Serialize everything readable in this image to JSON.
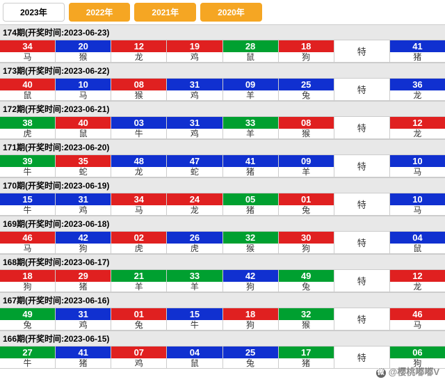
{
  "tabs": [
    {
      "label": "2023年",
      "active": true
    },
    {
      "label": "2022年",
      "active": false
    },
    {
      "label": "2021年",
      "active": false
    },
    {
      "label": "2020年",
      "active": false
    }
  ],
  "special_label": "特",
  "colors": {
    "red": "#e02020",
    "blue": "#1030d0",
    "green": "#00a030"
  },
  "periods": [
    {
      "header": "174期(开奖时间:2023-06-23)",
      "balls": [
        {
          "n": "34",
          "c": "red",
          "z": "马"
        },
        {
          "n": "20",
          "c": "blue",
          "z": "猴"
        },
        {
          "n": "12",
          "c": "red",
          "z": "龙"
        },
        {
          "n": "19",
          "c": "red",
          "z": "鸡"
        },
        {
          "n": "28",
          "c": "green",
          "z": "鼠"
        },
        {
          "n": "18",
          "c": "red",
          "z": "狗"
        }
      ],
      "special": {
        "n": "41",
        "c": "blue",
        "z": "猪"
      }
    },
    {
      "header": "173期(开奖时间:2023-06-22)",
      "balls": [
        {
          "n": "40",
          "c": "red",
          "z": "鼠"
        },
        {
          "n": "10",
          "c": "blue",
          "z": "马"
        },
        {
          "n": "08",
          "c": "red",
          "z": "猴"
        },
        {
          "n": "31",
          "c": "blue",
          "z": "鸡"
        },
        {
          "n": "09",
          "c": "blue",
          "z": "羊"
        },
        {
          "n": "25",
          "c": "blue",
          "z": "兔"
        }
      ],
      "special": {
        "n": "36",
        "c": "blue",
        "z": "龙"
      }
    },
    {
      "header": "172期(开奖时间:2023-06-21)",
      "balls": [
        {
          "n": "38",
          "c": "green",
          "z": "虎"
        },
        {
          "n": "40",
          "c": "red",
          "z": "鼠"
        },
        {
          "n": "03",
          "c": "blue",
          "z": "牛"
        },
        {
          "n": "31",
          "c": "blue",
          "z": "鸡"
        },
        {
          "n": "33",
          "c": "green",
          "z": "羊"
        },
        {
          "n": "08",
          "c": "red",
          "z": "猴"
        }
      ],
      "special": {
        "n": "12",
        "c": "red",
        "z": "龙"
      }
    },
    {
      "header": "171期(开奖时间:2023-06-20)",
      "balls": [
        {
          "n": "39",
          "c": "green",
          "z": "牛"
        },
        {
          "n": "35",
          "c": "red",
          "z": "蛇"
        },
        {
          "n": "48",
          "c": "blue",
          "z": "龙"
        },
        {
          "n": "47",
          "c": "blue",
          "z": "蛇"
        },
        {
          "n": "41",
          "c": "blue",
          "z": "猪"
        },
        {
          "n": "09",
          "c": "blue",
          "z": "羊"
        }
      ],
      "special": {
        "n": "10",
        "c": "blue",
        "z": "马"
      }
    },
    {
      "header": "170期(开奖时间:2023-06-19)",
      "balls": [
        {
          "n": "15",
          "c": "blue",
          "z": "牛"
        },
        {
          "n": "31",
          "c": "blue",
          "z": "鸡"
        },
        {
          "n": "34",
          "c": "red",
          "z": "马"
        },
        {
          "n": "24",
          "c": "red",
          "z": "龙"
        },
        {
          "n": "05",
          "c": "green",
          "z": "猪"
        },
        {
          "n": "01",
          "c": "red",
          "z": "兔"
        }
      ],
      "special": {
        "n": "10",
        "c": "blue",
        "z": "马"
      }
    },
    {
      "header": "169期(开奖时间:2023-06-18)",
      "balls": [
        {
          "n": "46",
          "c": "red",
          "z": "马"
        },
        {
          "n": "42",
          "c": "blue",
          "z": "狗"
        },
        {
          "n": "02",
          "c": "red",
          "z": "虎"
        },
        {
          "n": "26",
          "c": "blue",
          "z": "虎"
        },
        {
          "n": "32",
          "c": "green",
          "z": "猴"
        },
        {
          "n": "30",
          "c": "red",
          "z": "狗"
        }
      ],
      "special": {
        "n": "04",
        "c": "blue",
        "z": "鼠"
      }
    },
    {
      "header": "168期(开奖时间:2023-06-17)",
      "balls": [
        {
          "n": "18",
          "c": "red",
          "z": "狗"
        },
        {
          "n": "29",
          "c": "red",
          "z": "猪"
        },
        {
          "n": "21",
          "c": "green",
          "z": "羊"
        },
        {
          "n": "33",
          "c": "green",
          "z": "羊"
        },
        {
          "n": "42",
          "c": "blue",
          "z": "狗"
        },
        {
          "n": "49",
          "c": "green",
          "z": "兔"
        }
      ],
      "special": {
        "n": "12",
        "c": "red",
        "z": "龙"
      }
    },
    {
      "header": "167期(开奖时间:2023-06-16)",
      "balls": [
        {
          "n": "49",
          "c": "green",
          "z": "兔"
        },
        {
          "n": "31",
          "c": "blue",
          "z": "鸡"
        },
        {
          "n": "01",
          "c": "red",
          "z": "兔"
        },
        {
          "n": "15",
          "c": "blue",
          "z": "牛"
        },
        {
          "n": "18",
          "c": "red",
          "z": "狗"
        },
        {
          "n": "32",
          "c": "green",
          "z": "猴"
        }
      ],
      "special": {
        "n": "46",
        "c": "red",
        "z": "马"
      }
    },
    {
      "header": "166期(开奖时间:2023-06-15)",
      "balls": [
        {
          "n": "27",
          "c": "green",
          "z": "牛"
        },
        {
          "n": "41",
          "c": "blue",
          "z": "猪"
        },
        {
          "n": "07",
          "c": "red",
          "z": "鸡"
        },
        {
          "n": "04",
          "c": "blue",
          "z": "鼠"
        },
        {
          "n": "25",
          "c": "blue",
          "z": "兔"
        },
        {
          "n": "17",
          "c": "green",
          "z": "猪"
        }
      ],
      "special": {
        "n": "06",
        "c": "green",
        "z": "狗"
      }
    }
  ],
  "watermark": "@樱桃嘟嘟V"
}
